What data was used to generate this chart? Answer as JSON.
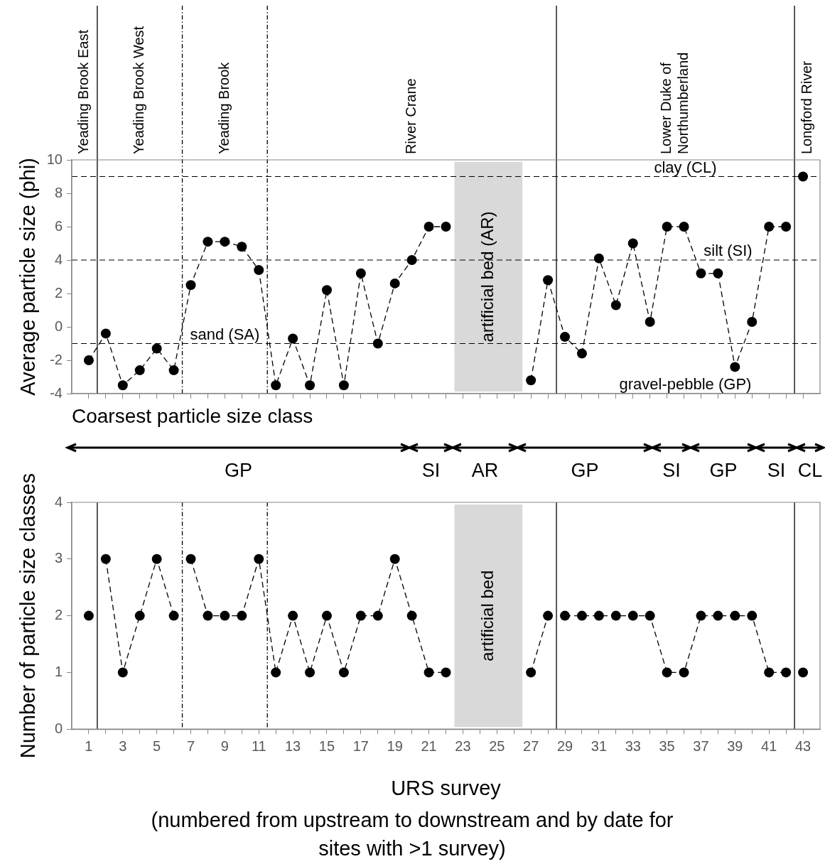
{
  "chart_data": [
    {
      "type": "line",
      "ylabel": "Average particle size (phi)",
      "xlim": [
        0,
        44
      ],
      "xticks": [
        {
          "value": 1,
          "label": null
        },
        {
          "value": 2,
          "label": null
        },
        {
          "value": 3,
          "label": null
        },
        {
          "value": 4,
          "label": null
        },
        {
          "value": 5,
          "label": null
        },
        {
          "value": 6,
          "label": null
        },
        {
          "value": 7,
          "label": null
        },
        {
          "value": 8,
          "label": null
        },
        {
          "value": 9,
          "label": null
        },
        {
          "value": 10,
          "label": null
        },
        {
          "value": 11,
          "label": null
        },
        {
          "value": 12,
          "label": null
        },
        {
          "value": 13,
          "label": null
        },
        {
          "value": 14,
          "label": null
        },
        {
          "value": 15,
          "label": null
        },
        {
          "value": 16,
          "label": null
        },
        {
          "value": 17,
          "label": null
        },
        {
          "value": 18,
          "label": null
        },
        {
          "value": 19,
          "label": null
        },
        {
          "value": 20,
          "label": null
        },
        {
          "value": 21,
          "label": null
        },
        {
          "value": 22,
          "label": null
        },
        {
          "value": 23,
          "label": null
        },
        {
          "value": 24,
          "label": null
        },
        {
          "value": 25,
          "label": null
        },
        {
          "value": 26,
          "label": null
        },
        {
          "value": 27,
          "label": null
        },
        {
          "value": 28,
          "label": null
        },
        {
          "value": 29,
          "label": null
        },
        {
          "value": 30,
          "label": null
        },
        {
          "value": 31,
          "label": null
        },
        {
          "value": 32,
          "label": null
        },
        {
          "value": 33,
          "label": null
        },
        {
          "value": 34,
          "label": null
        },
        {
          "value": 35,
          "label": null
        },
        {
          "value": 36,
          "label": null
        },
        {
          "value": 37,
          "label": null
        },
        {
          "value": 38,
          "label": null
        },
        {
          "value": 39,
          "label": null
        },
        {
          "value": 40,
          "label": null
        },
        {
          "value": 41,
          "label": null
        },
        {
          "value": 42,
          "label": null
        },
        {
          "value": 43,
          "label": null
        }
      ],
      "ylim": [
        -4,
        10
      ],
      "yticks": [
        -4,
        -2,
        0,
        2,
        4,
        6,
        8,
        10
      ],
      "tick_labels": "y",
      "marker": "circle",
      "line_style": "dashed",
      "series": [
        {
          "type": "line",
          "color": "#000000",
          "x": [
            1,
            2,
            3,
            4,
            5,
            6,
            7,
            8,
            9,
            10,
            11,
            12,
            13,
            14,
            15,
            16,
            17,
            18,
            19,
            20,
            21,
            22
          ],
          "values": [
            -2.0,
            -0.4,
            -3.5,
            -2.6,
            -1.3,
            -2.6,
            2.5,
            5.1,
            5.1,
            4.8,
            3.4,
            -3.5,
            -0.7,
            -3.5,
            2.2,
            -3.5,
            3.2,
            -1.0,
            2.6,
            4.0,
            6.0,
            6.0
          ]
        },
        {
          "type": "line",
          "color": "#000000",
          "x": [
            27,
            28,
            29,
            30,
            31,
            32,
            33,
            34,
            35,
            36,
            37,
            38,
            39,
            40,
            41,
            42
          ],
          "values": [
            -3.2,
            2.8,
            -0.6,
            -1.6,
            4.1,
            1.3,
            5.0,
            0.3,
            6.0,
            6.0,
            3.2,
            3.2,
            -2.4,
            0.3,
            6.0,
            6.0
          ]
        },
        {
          "type": "line",
          "color": "#000000",
          "x": [
            43
          ],
          "values": [
            9.0
          ]
        }
      ],
      "ref_lines": [
        {
          "axis": "y",
          "value": 9,
          "line_style": "dashed"
        },
        {
          "axis": "y",
          "value": 4,
          "line_style": "dashed"
        },
        {
          "axis": "y",
          "value": -1,
          "line_style": "dashed"
        },
        {
          "axis": "x",
          "value": 1.5,
          "line_style": "solid"
        },
        {
          "axis": "x",
          "value": 6.5,
          "line_style": "dotted"
        },
        {
          "axis": "x",
          "value": 11.5,
          "line_style": "dotted"
        },
        {
          "axis": "x",
          "value": 28.5,
          "line_style": "solid"
        },
        {
          "axis": "x",
          "value": 42.5,
          "line_style": "solid"
        }
      ],
      "bands": [
        {
          "axis": "x",
          "from": 22.5,
          "to": 26.5,
          "label": "artificial bed (AR)",
          "color": "#d9d9d9"
        }
      ],
      "annotations": [
        "Yeading Brook East",
        "Yeading Brook West",
        "Yeading Brook",
        "River Crane",
        "Lower Duke of Northumberland",
        "Longford River",
        "clay (CL)",
        "silt (SI)",
        "sand (SA)",
        "gravel-pebble (GP)"
      ]
    },
    {
      "type": "other",
      "title": "Coarsest particle size class",
      "categories": [
        "GP",
        "SI",
        "AR",
        "GP",
        "SI",
        "GP",
        "SI",
        "CL"
      ]
    },
    {
      "type": "line",
      "xlabel": "URS survey",
      "ylabel": "Number of particle size classes",
      "xlim": [
        0,
        44
      ],
      "xticks": [
        1,
        {
          "value": 2,
          "label": null
        },
        3,
        {
          "value": 4,
          "label": null
        },
        5,
        {
          "value": 6,
          "label": null
        },
        7,
        {
          "value": 8,
          "label": null
        },
        9,
        {
          "value": 10,
          "label": null
        },
        11,
        {
          "value": 12,
          "label": null
        },
        13,
        {
          "value": 14,
          "label": null
        },
        15,
        {
          "value": 16,
          "label": null
        },
        17,
        {
          "value": 18,
          "label": null
        },
        19,
        {
          "value": 20,
          "label": null
        },
        21,
        {
          "value": 22,
          "label": null
        },
        23,
        {
          "value": 24,
          "label": null
        },
        25,
        {
          "value": 26,
          "label": null
        },
        27,
        {
          "value": 28,
          "label": null
        },
        29,
        {
          "value": 30,
          "label": null
        },
        31,
        {
          "value": 32,
          "label": null
        },
        33,
        {
          "value": 34,
          "label": null
        },
        35,
        {
          "value": 36,
          "label": null
        },
        37,
        {
          "value": 38,
          "label": null
        },
        39,
        {
          "value": 40,
          "label": null
        },
        41,
        {
          "value": 42,
          "label": null
        },
        43
      ],
      "ylim": [
        0,
        4
      ],
      "yticks": [
        0,
        1,
        2,
        3,
        4
      ],
      "marker": "circle",
      "line_style": "dashed",
      "series": [
        {
          "type": "line",
          "color": "#000000",
          "x": [
            1
          ],
          "values": [
            2
          ]
        },
        {
          "type": "line",
          "color": "#000000",
          "x": [
            2,
            3,
            4,
            5,
            6
          ],
          "values": [
            3,
            1,
            2,
            3,
            2
          ]
        },
        {
          "type": "line",
          "color": "#000000",
          "x": [
            7,
            8,
            9,
            10,
            11,
            12,
            13,
            14,
            15,
            16,
            17,
            18,
            19,
            20,
            21,
            22
          ],
          "values": [
            3,
            2,
            2,
            2,
            3,
            1,
            2,
            1,
            2,
            1,
            2,
            2,
            3,
            2,
            1,
            1
          ]
        },
        {
          "type": "line",
          "color": "#000000",
          "x": [
            27,
            28
          ],
          "values": [
            1,
            2
          ]
        },
        {
          "type": "line",
          "color": "#000000",
          "x": [
            29,
            30,
            31,
            32,
            33,
            34,
            35,
            36,
            37,
            38,
            39,
            40,
            41,
            42
          ],
          "values": [
            2,
            2,
            2,
            2,
            2,
            2,
            1,
            1,
            2,
            2,
            2,
            2,
            1,
            1
          ]
        },
        {
          "type": "line",
          "color": "#000000",
          "x": [
            43
          ],
          "values": [
            1
          ]
        }
      ],
      "ref_lines": [
        {
          "axis": "x",
          "value": 1.5,
          "line_style": "solid"
        },
        {
          "axis": "x",
          "value": 6.5,
          "line_style": "dotted"
        },
        {
          "axis": "x",
          "value": 11.5,
          "line_style": "dotted"
        },
        {
          "axis": "x",
          "value": 28.5,
          "line_style": "solid"
        },
        {
          "axis": "x",
          "value": 42.5,
          "line_style": "solid"
        }
      ],
      "bands": [
        {
          "axis": "x",
          "from": 22.5,
          "to": 26.5,
          "label": "artificial bed",
          "color": "#d9d9d9"
        }
      ],
      "annotations": [
        "(numbered from upstream to downstream and by date for sites with >1 survey)"
      ]
    }
  ]
}
